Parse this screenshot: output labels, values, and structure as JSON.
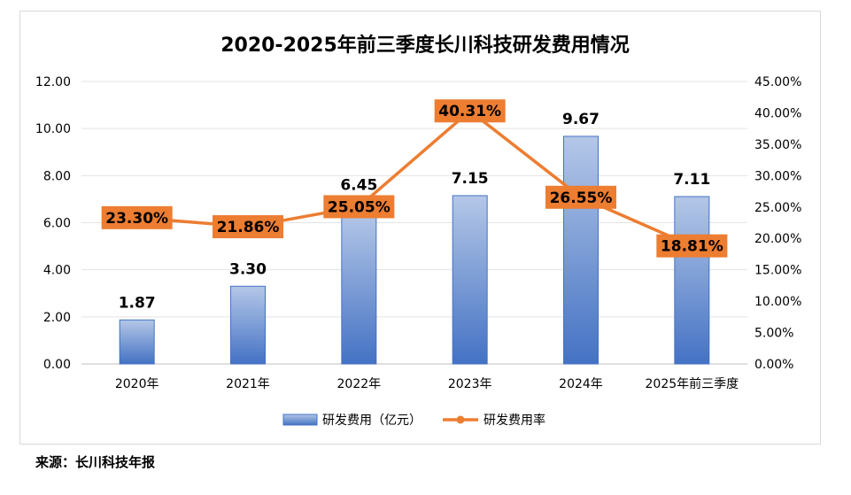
{
  "chart_data": {
    "type": "bar",
    "title": "2020-2025年前三季度长川科技研发费用情况",
    "categories": [
      "2020年",
      "2021年",
      "2022年",
      "2023年",
      "2024年",
      "2025年前三季度"
    ],
    "series": [
      {
        "name": "研发费用（亿元）",
        "type": "bar",
        "axis": "left",
        "values": [
          1.87,
          3.3,
          6.45,
          7.15,
          9.67,
          7.11
        ],
        "labels": [
          "1.87",
          "3.30",
          "6.45",
          "7.15",
          "9.67",
          "7.11"
        ],
        "color": "#4472c4"
      },
      {
        "name": "研发费用率",
        "type": "line",
        "axis": "right",
        "values": [
          23.3,
          21.86,
          25.05,
          40.31,
          26.55,
          18.81
        ],
        "labels": [
          "23.30%",
          "21.86%",
          "25.05%",
          "40.31%",
          "26.55%",
          "18.81%"
        ],
        "color": "#ed7d31"
      }
    ],
    "y_left": {
      "ylim": [
        0,
        12
      ],
      "ticks": [
        "0.00",
        "2.00",
        "4.00",
        "6.00",
        "8.00",
        "10.00",
        "12.00"
      ]
    },
    "y_right": {
      "ylim": [
        0,
        45
      ],
      "ticks": [
        "0.00%",
        "5.00%",
        "10.00%",
        "15.00%",
        "20.00%",
        "25.00%",
        "30.00%",
        "35.00%",
        "40.00%",
        "45.00%"
      ]
    },
    "grid": true,
    "legend": "bottom"
  },
  "source": "来源：长川科技年报"
}
